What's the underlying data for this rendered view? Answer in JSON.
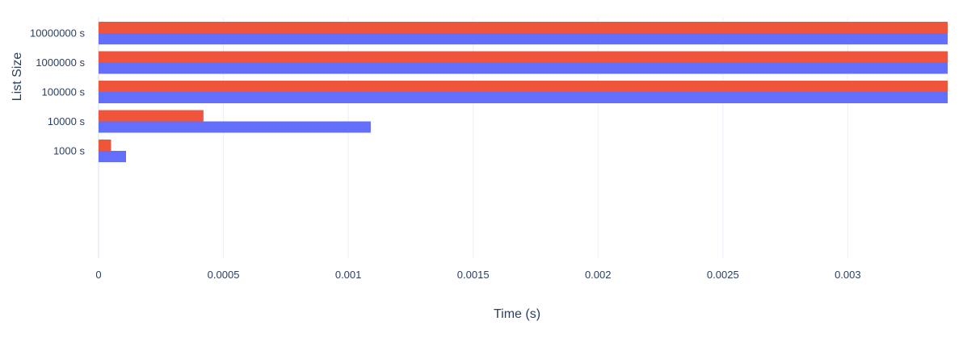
{
  "chart_data": {
    "type": "bar",
    "orientation": "horizontal",
    "categories": [
      "1000 s",
      "10000 s",
      "100000 s",
      "1000000 s",
      "10000000 s"
    ],
    "series": [
      {
        "values": [
          0.00011,
          0.00109,
          0.0034,
          0.0034,
          0.0034
        ],
        "color": "#636efa"
      },
      {
        "values": [
          5e-05,
          0.00042,
          0.0034,
          0.0034,
          0.0034
        ],
        "color": "#ef553b"
      }
    ],
    "xlabel": "Time (s)",
    "ylabel": "List Size",
    "xlim": [
      0,
      0.0034
    ],
    "x_ticks": [
      0,
      0.0005,
      0.001,
      0.0015,
      0.002,
      0.0025,
      0.003
    ],
    "x_tick_labels": [
      "0",
      "0.0005",
      "0.001",
      "0.0015",
      "0.002",
      "0.0025",
      "0.003"
    ],
    "grid": "vertical",
    "legend": "none"
  }
}
